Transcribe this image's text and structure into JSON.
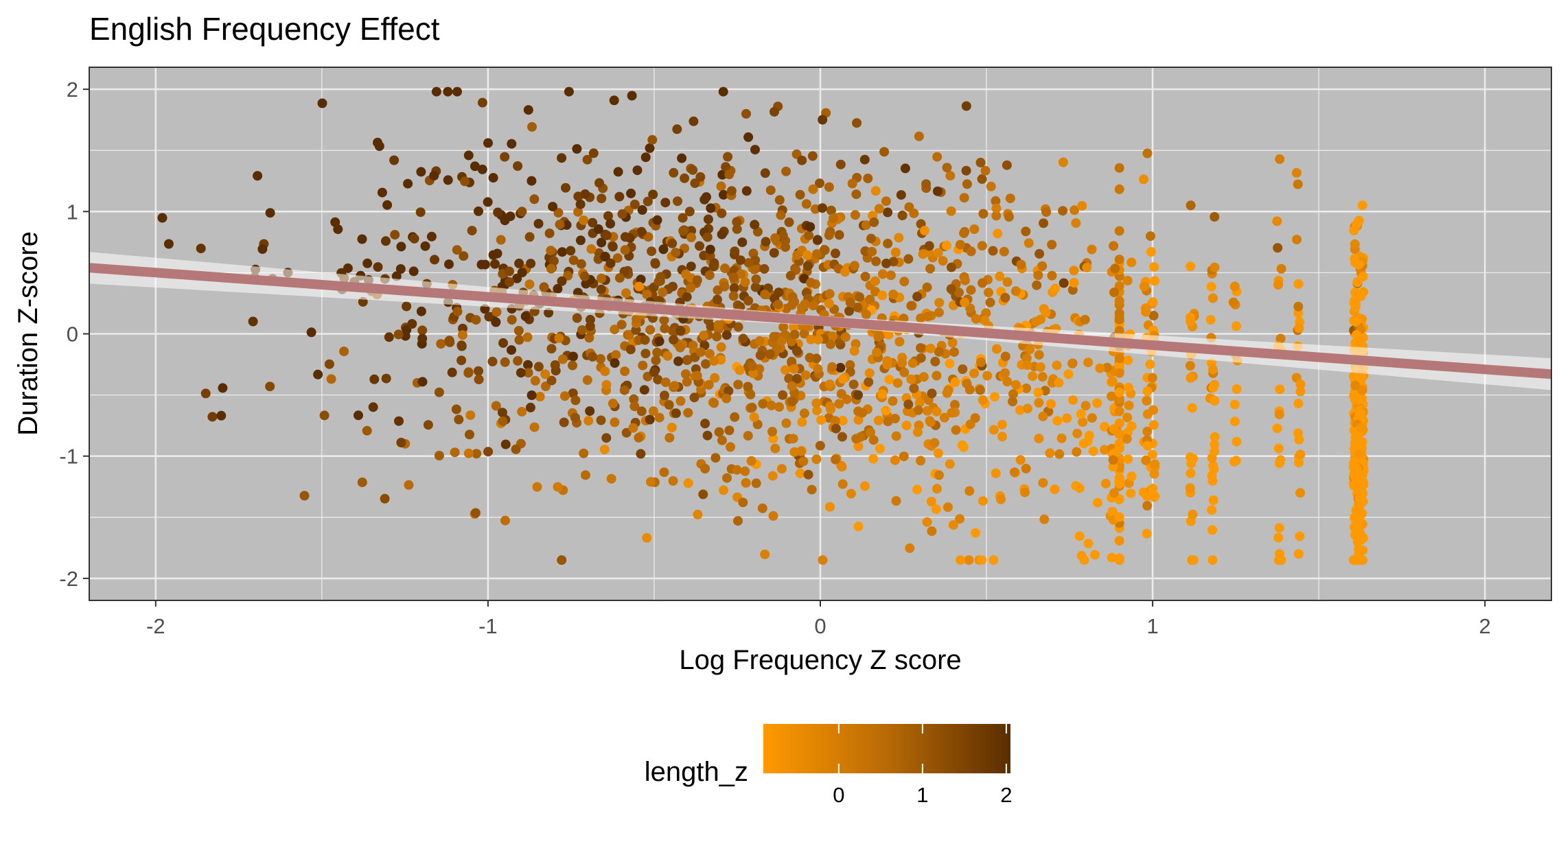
{
  "chart_data": {
    "type": "scatter",
    "title": "English Frequency Effect",
    "xlabel": "Log Frequency Z score",
    "ylabel": "Duration Z-score",
    "xlim": [
      -2.2,
      2.2
    ],
    "ylim": [
      -2.18,
      2.18
    ],
    "x_ticks": [
      -2,
      -1,
      0,
      1,
      2
    ],
    "x_tick_labels": [
      "-2",
      "-1",
      "0",
      "1",
      "2"
    ],
    "y_ticks": [
      -2,
      -1,
      0,
      1,
      2
    ],
    "y_tick_labels": [
      "-2",
      "-1",
      "0",
      "1",
      "2"
    ],
    "grid": true,
    "regression": {
      "x": [
        -2.2,
        2.2
      ],
      "y": [
        0.54,
        -0.33
      ],
      "color": "#b57777"
    },
    "legend": {
      "position": "bottom",
      "title": "length_z",
      "gradient_colors": [
        "#ff9900",
        "#b86a06",
        "#5a2d00"
      ],
      "range": [
        -0.9,
        2.05
      ],
      "ticks": [
        0,
        1,
        2
      ],
      "tick_labels": [
        "0",
        "1",
        "2"
      ]
    },
    "colors": {
      "panel_bg": "#bdbdbd",
      "grid": "#ebebeb",
      "low": "#ff9900",
      "high": "#5a2d00"
    },
    "n_points": 2000
  }
}
